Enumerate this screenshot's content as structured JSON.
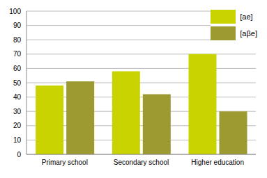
{
  "chart_data": {
    "type": "bar",
    "categories": [
      "Primary school",
      "Secondary school",
      "Higher education"
    ],
    "series": [
      {
        "name": "[ae]",
        "color": "#c8d300",
        "values": [
          48,
          58,
          70
        ]
      },
      {
        "name": "[aβe]",
        "color": "#9c9a30",
        "values": [
          51,
          42,
          30
        ]
      }
    ],
    "ylim": [
      0,
      100
    ],
    "yticks": [
      0,
      10,
      20,
      30,
      40,
      50,
      60,
      70,
      80,
      90,
      100
    ],
    "grid": true,
    "legend": "upper right"
  }
}
